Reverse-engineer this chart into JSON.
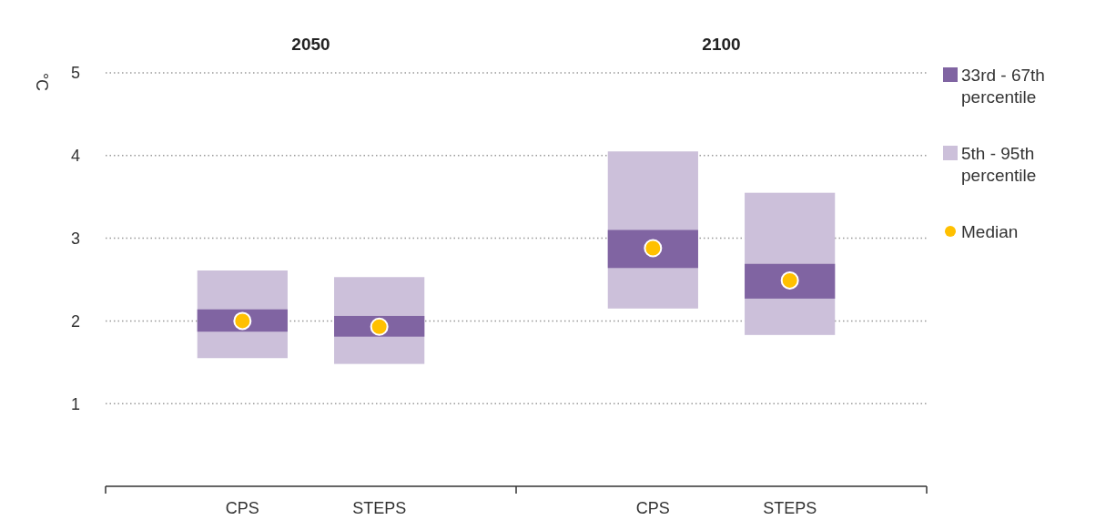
{
  "chart_data": {
    "type": "bar",
    "ylabel": "°C",
    "categories": [
      "CPS",
      "STEPS",
      "CPS",
      "STEPS"
    ],
    "annotations": [
      "2050",
      "2100"
    ],
    "ylim": [
      0,
      5
    ],
    "yticks": [
      1,
      2,
      3,
      4,
      5
    ],
    "grid": "y",
    "legend": "right",
    "series": [
      {
        "name": "5th - 95th percentile",
        "color": "#ccc0da",
        "base": [
          1.55,
          1.48,
          2.15,
          1.83
        ],
        "values": [
          1.06,
          1.05,
          1.9,
          1.72
        ]
      },
      {
        "name": "33rd - 67th percentile",
        "color": "#8064a2",
        "base": [
          1.87,
          1.81,
          2.64,
          2.27
        ],
        "values": [
          0.27,
          0.25,
          0.46,
          0.42
        ]
      },
      {
        "name": "Median",
        "type": "scatter",
        "color": "#ffc000",
        "marker": "circle",
        "values": [
          2.0,
          1.93,
          2.88,
          2.49
        ]
      }
    ]
  }
}
